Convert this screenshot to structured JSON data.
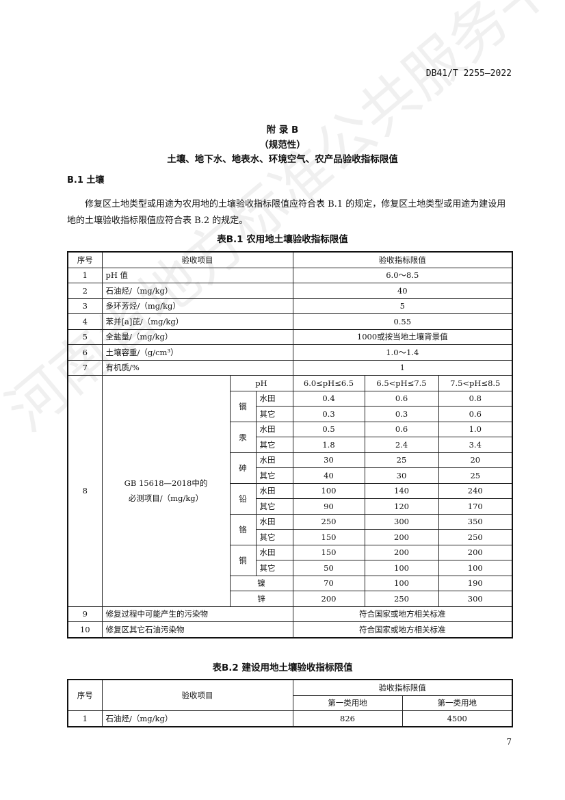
{
  "header": {
    "std_number": "DB41/T 2255—2022"
  },
  "appendix": {
    "title": "附 录 B",
    "nature": "（规范性）",
    "subtitle": "土壤、地下水、地表水、环境空气、农产品验收指标限值"
  },
  "section": {
    "heading": "B.1  土壤",
    "paragraph": "修复区土地类型或用途为农用地的土壤验收指标限值应符合表 B.1 的规定，修复区土地类型或用途为建设用地的土壤验收指标限值应符合表 B.2 的规定。"
  },
  "table1": {
    "caption": "表B.1   农用地土壤验收指标限值",
    "headers": [
      "序号",
      "验收项目",
      "验收指标限值"
    ],
    "simple_rows": [
      [
        "1",
        "pH 值",
        "6.0～8.5"
      ],
      [
        "2",
        "石油烃/（mg/kg）",
        "40"
      ],
      [
        "3",
        "多环芳烃/（mg/kg）",
        "5"
      ],
      [
        "4",
        "苯并[a]芘/（mg/kg）",
        "0.55"
      ],
      [
        "5",
        "全盐量/（mg/kg）",
        "1000或按当地土壤背景值"
      ],
      [
        "6",
        "土壤容重/（g/cm³）",
        "1.0～1.4"
      ],
      [
        "7",
        "有机质/%",
        "1"
      ]
    ],
    "row8": {
      "no": "8",
      "item": "GB 15618—2018中的必测项目/（mg/kg）",
      "ph_label": "pH",
      "ph_ranges": [
        "6.0≤pH≤6.5",
        "6.5<pH≤7.5",
        "7.5<pH≤8.5"
      ],
      "metals": [
        {
          "name": "镉",
          "rows": [
            [
              "水田",
              "0.4",
              "0.6",
              "0.8"
            ],
            [
              "其它",
              "0.3",
              "0.3",
              "0.6"
            ]
          ]
        },
        {
          "name": "汞",
          "rows": [
            [
              "水田",
              "0.5",
              "0.6",
              "1.0"
            ],
            [
              "其它",
              "1.8",
              "2.4",
              "3.4"
            ]
          ]
        },
        {
          "name": "砷",
          "rows": [
            [
              "水田",
              "30",
              "25",
              "20"
            ],
            [
              "其它",
              "40",
              "30",
              "25"
            ]
          ]
        },
        {
          "name": "铅",
          "rows": [
            [
              "水田",
              "100",
              "140",
              "240"
            ],
            [
              "其它",
              "90",
              "120",
              "170"
            ]
          ]
        },
        {
          "name": "铬",
          "rows": [
            [
              "水田",
              "250",
              "300",
              "350"
            ],
            [
              "其它",
              "150",
              "200",
              "250"
            ]
          ]
        },
        {
          "name": "铜",
          "rows": [
            [
              "水田",
              "150",
              "200",
              "200"
            ],
            [
              "其它",
              "50",
              "100",
              "100"
            ]
          ]
        }
      ],
      "single": [
        [
          "镍",
          "70",
          "100",
          "190"
        ],
        [
          "锌",
          "200",
          "250",
          "300"
        ]
      ]
    },
    "tail_rows": [
      [
        "9",
        "修复过程中可能产生的污染物",
        "符合国家或地方相关标准"
      ],
      [
        "10",
        "修复区其它石油污染物",
        "符合国家或地方相关标准"
      ]
    ]
  },
  "table2": {
    "caption": "表B.2   建设用地土壤验收指标限值",
    "headers": [
      "序号",
      "验收项目",
      "验收指标限值"
    ],
    "sub_headers": [
      "第一类用地",
      "第一类用地"
    ],
    "rows": [
      [
        "1",
        "石油烃/（mg/kg）",
        "826",
        "4500"
      ]
    ]
  },
  "page_number": "7",
  "watermark": "河南省地方标准公共服务平台"
}
